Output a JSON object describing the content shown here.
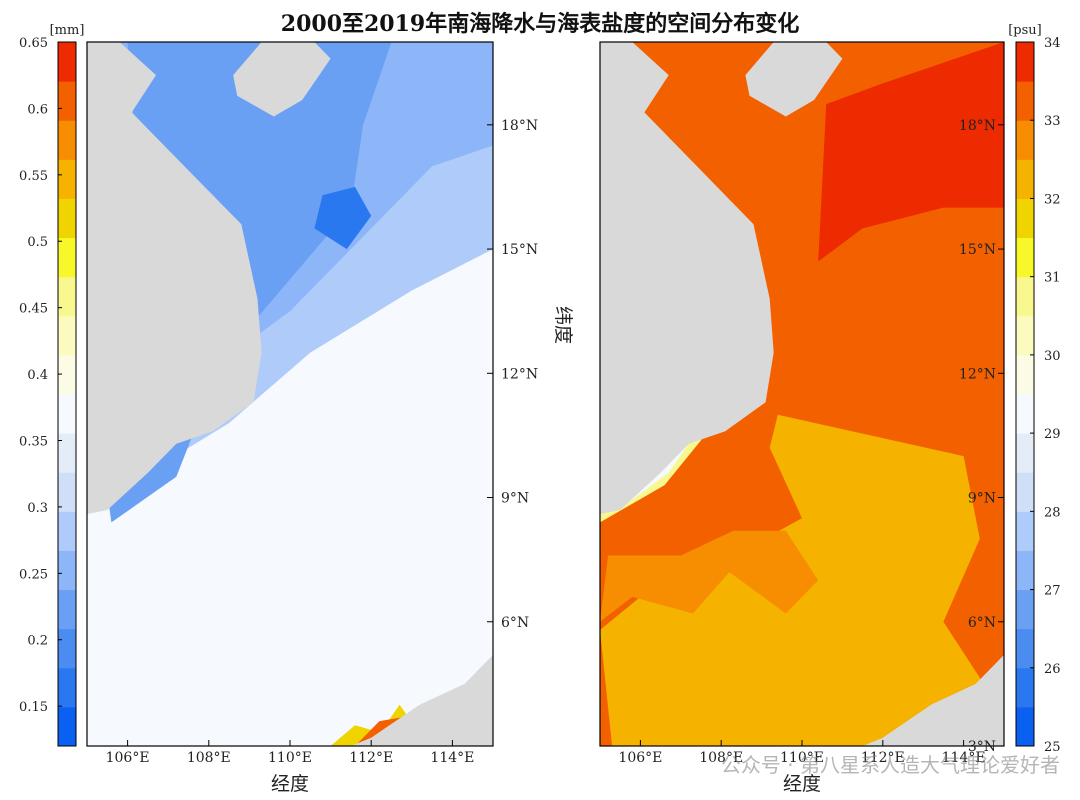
{
  "title": "2000至2019年南海降水与海表盐度的空间分布变化",
  "watermark": "公众号 · 第八星系人造大气理论爱好者",
  "colors": {
    "land": "#d9d9d9",
    "frame": "#000000"
  },
  "chart_data": [
    {
      "type": "heatmap",
      "name": "precipitation",
      "xlabel": "经度",
      "ylabel": "",
      "xticks": [
        "106°E",
        "108°E",
        "110°E",
        "112°E",
        "114°E"
      ],
      "yticks": [
        "18°N",
        "15°N",
        "12°N",
        "9°N",
        "6°N"
      ],
      "xlim": [
        105,
        115
      ],
      "ylim": [
        3,
        20
      ],
      "colorbar": {
        "unit": "[mm]",
        "side": "left",
        "vmin": 0.12,
        "vmax": 0.65,
        "ticks": [
          "0.65",
          "0.6",
          "0.55",
          "0.5",
          "0.45",
          "0.4",
          "0.35",
          "0.3",
          "0.25",
          "0.2",
          "0.15"
        ],
        "colors": [
          "#0a60f0",
          "#2a78f0",
          "#4a8cf0",
          "#6aa0f4",
          "#8cb6f7",
          "#afcbfa",
          "#cfdff8",
          "#e4ecf8",
          "#f6f9fd",
          "#fbfbe6",
          "#fbfbc0",
          "#f8f88e",
          "#f7f72a",
          "#f0d400",
          "#f5b300",
          "#f78d00",
          "#f36000",
          "#ee2a00"
        ]
      },
      "levels": [
        0.24,
        0.28,
        0.32,
        0.36,
        0.44
      ],
      "description_contours": "Band of high precipitation (0.15-0.2 mm) along the Vietnam coast and Gulf of Tonkin; values increase southeastward to 0.35-0.45 mm, with a local maximum near 112.5°E, 3.5°N reaching 0.6 mm."
    },
    {
      "type": "heatmap",
      "name": "salinity",
      "xlabel": "经度",
      "ylabel": "纬度",
      "xticks": [
        "106°E",
        "108°E",
        "110°E",
        "112°E",
        "114°E"
      ],
      "yticks": [
        "18°N",
        "15°N",
        "12°N",
        "9°N",
        "6°N",
        "3°N"
      ],
      "xlim": [
        105,
        115
      ],
      "ylim": [
        3,
        20
      ],
      "colorbar": {
        "unit": "[psu]",
        "side": "right",
        "vmin": 25,
        "vmax": 34,
        "ticks": [
          "34",
          "33",
          "32",
          "31",
          "30",
          "29",
          "28",
          "27",
          "26",
          "25"
        ],
        "colors": [
          "#0a60f0",
          "#2a78f0",
          "#4a8cf0",
          "#6aa0f4",
          "#8cb6f7",
          "#afcbfa",
          "#cfdff8",
          "#e4ecf8",
          "#f6f9fd",
          "#fbfbe6",
          "#fbfbc0",
          "#f8f88e",
          "#f7f72a",
          "#f0d400",
          "#f5b300",
          "#f78d00",
          "#f36000",
          "#ee2a00"
        ]
      },
      "levels": [
        32.5,
        33.0,
        33.5
      ],
      "description_contours": "Salinity mostly 32.5-33.5 psu; highest (>33.5) in the northeast, lower (~32-32.5) in the southern and central-south basin, fresher water (<31) along the Mekong coastal margin."
    }
  ]
}
